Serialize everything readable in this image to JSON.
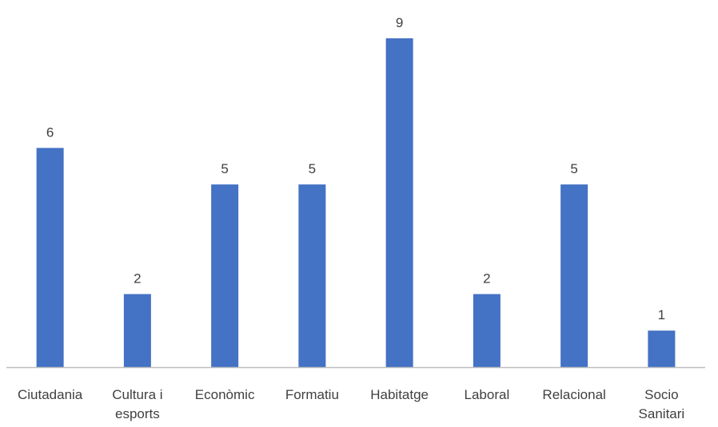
{
  "chart_data": {
    "type": "bar",
    "title": "",
    "xlabel": "",
    "ylabel": "",
    "categories": [
      [
        "Ciutadania"
      ],
      [
        "Cultura i",
        "esports"
      ],
      [
        "Econòmic"
      ],
      [
        "Formatiu"
      ],
      [
        "Habitatge"
      ],
      [
        "Laboral"
      ],
      [
        "Relacional"
      ],
      [
        "Socio",
        "Sanitari"
      ]
    ],
    "values": [
      6,
      2,
      5,
      5,
      9,
      2,
      5,
      1
    ],
    "ylim": [
      0,
      9
    ],
    "grid": false,
    "legend": "none",
    "colors": {
      "bar": "#4472C4",
      "axis": "#BFBFBF",
      "text": "#404040"
    }
  }
}
